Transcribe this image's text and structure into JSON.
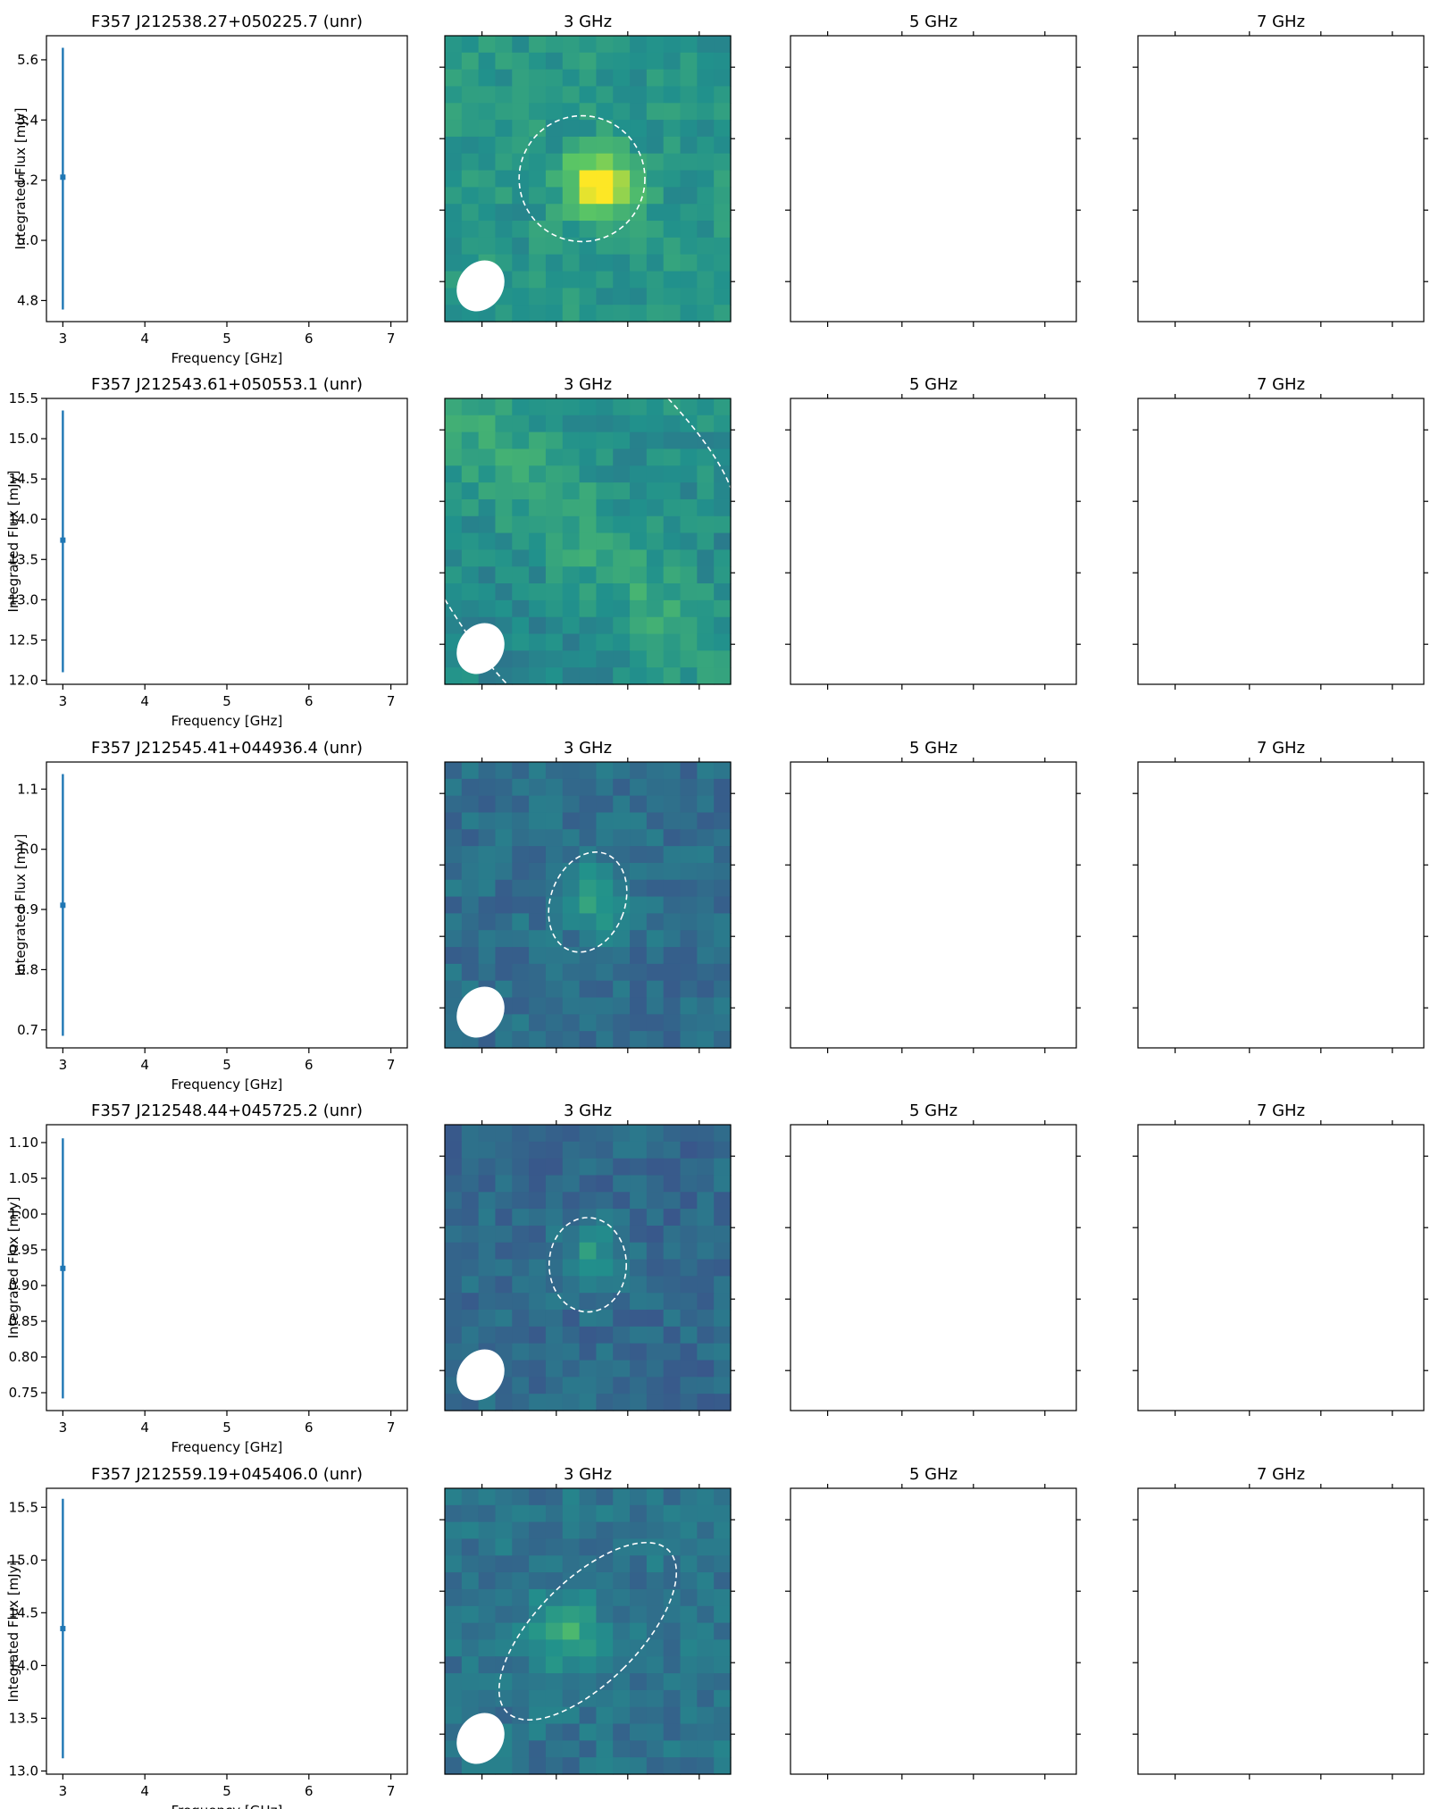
{
  "figure": {
    "background": "#ffffff",
    "line_color": "#1f77b4"
  },
  "chart_data": [
    {
      "type": "scatter",
      "title": "F357 J212538.27+050225.7 (unr)",
      "xlabel": "Frequency [GHz]",
      "ylabel": "Integrated Flux [mJy]",
      "xlim": [
        2.8,
        7.2
      ],
      "ylim": [
        4.73,
        5.68
      ],
      "x_ticks": [
        3,
        4,
        5,
        6,
        7
      ],
      "y_ticks": [
        4.8,
        5.0,
        5.2,
        5.4,
        5.6
      ],
      "points": [
        {
          "x": 3,
          "y": 5.21,
          "err_low": 4.77,
          "err_high": 5.64
        }
      ],
      "image_panels": [
        {
          "title": "3 GHz",
          "has_image": true,
          "source_ellipse": {
            "cx": 0.48,
            "cy": 0.5,
            "rx": 0.22,
            "ry": 0.22,
            "angle": 0
          },
          "seed": 1,
          "peak": [
            0.54,
            0.52
          ],
          "peak_strength": 0.55,
          "base": 0.52
        },
        {
          "title": "5 GHz",
          "has_image": false
        },
        {
          "title": "7 GHz",
          "has_image": false
        }
      ]
    },
    {
      "type": "scatter",
      "title": "F357 J212543.61+050553.1 (unr)",
      "xlabel": "Frequency [GHz]",
      "ylabel": "Integrated Flux [mJy]",
      "xlim": [
        2.8,
        7.2
      ],
      "ylim": [
        11.95,
        15.5
      ],
      "x_ticks": [
        3,
        4,
        5,
        6,
        7
      ],
      "y_ticks": [
        12.0,
        12.5,
        13.0,
        13.5,
        14.0,
        14.5,
        15.0,
        15.5
      ],
      "tick_format": 1,
      "points": [
        {
          "x": 3,
          "y": 13.74,
          "err_low": 12.1,
          "err_high": 15.35
        }
      ],
      "image_panels": [
        {
          "title": "3 GHz",
          "has_image": true,
          "diagonal": true,
          "seed": 2,
          "base": 0.5
        },
        {
          "title": "5 GHz",
          "has_image": false
        },
        {
          "title": "7 GHz",
          "has_image": false
        }
      ]
    },
    {
      "type": "scatter",
      "title": "F357 J212545.41+044936.4 (unr)",
      "xlabel": "Frequency [GHz]",
      "ylabel": "Integrated Flux [mJy]",
      "xlim": [
        2.8,
        7.2
      ],
      "ylim": [
        0.67,
        1.145
      ],
      "x_ticks": [
        3,
        4,
        5,
        6,
        7
      ],
      "y_ticks": [
        0.7,
        0.8,
        0.9,
        1.0,
        1.1
      ],
      "tick_format": 1,
      "points": [
        {
          "x": 3,
          "y": 0.907,
          "err_low": 0.69,
          "err_high": 1.125
        }
      ],
      "image_panels": [
        {
          "title": "3 GHz",
          "has_image": true,
          "source_ellipse": {
            "cx": 0.5,
            "cy": 0.49,
            "rx": 0.13,
            "ry": 0.18,
            "angle": 20
          },
          "seed": 3,
          "peak": [
            0.52,
            0.48
          ],
          "peak_strength": 0.25,
          "base": 0.36
        },
        {
          "title": "5 GHz",
          "has_image": false
        },
        {
          "title": "7 GHz",
          "has_image": false
        }
      ]
    },
    {
      "type": "scatter",
      "title": "F357 J212548.44+045725.2 (unr)",
      "xlabel": "Frequency [GHz]",
      "ylabel": "Integrated Flux [mJy]",
      "xlim": [
        2.8,
        7.2
      ],
      "ylim": [
        0.725,
        1.125
      ],
      "x_ticks": [
        3,
        4,
        5,
        6,
        7
      ],
      "y_ticks": [
        0.75,
        0.8,
        0.85,
        0.9,
        0.95,
        1.0,
        1.05,
        1.1
      ],
      "tick_format": 2,
      "points": [
        {
          "x": 3,
          "y": 0.924,
          "err_low": 0.742,
          "err_high": 1.106
        }
      ],
      "image_panels": [
        {
          "title": "3 GHz",
          "has_image": true,
          "source_ellipse": {
            "cx": 0.5,
            "cy": 0.49,
            "rx": 0.135,
            "ry": 0.165,
            "angle": 0
          },
          "seed": 4,
          "peak": [
            0.52,
            0.48
          ],
          "peak_strength": 0.2,
          "base": 0.34
        },
        {
          "title": "5 GHz",
          "has_image": false
        },
        {
          "title": "7 GHz",
          "has_image": false
        }
      ]
    },
    {
      "type": "scatter",
      "title": "F357 J212559.19+045406.0 (unr)",
      "xlabel": "Frequency [GHz]",
      "ylabel": "Integrated Flux [mJy]",
      "xlim": [
        2.8,
        7.2
      ],
      "ylim": [
        12.97,
        15.68
      ],
      "x_ticks": [
        3,
        4,
        5,
        6,
        7
      ],
      "y_ticks": [
        13.0,
        13.5,
        14.0,
        14.5,
        15.0,
        15.5
      ],
      "tick_format": 1,
      "points": [
        {
          "x": 3,
          "y": 14.35,
          "err_low": 13.12,
          "err_high": 15.58
        }
      ],
      "image_panels": [
        {
          "title": "3 GHz",
          "has_image": true,
          "source_ellipse": {
            "cx": 0.5,
            "cy": 0.5,
            "rx": 0.18,
            "ry": 0.4,
            "angle": 45
          },
          "seed": 5,
          "peak": [
            0.43,
            0.5
          ],
          "peak_strength": 0.3,
          "base": 0.38
        },
        {
          "title": "5 GHz",
          "has_image": false
        },
        {
          "title": "7 GHz",
          "has_image": false
        }
      ]
    }
  ]
}
